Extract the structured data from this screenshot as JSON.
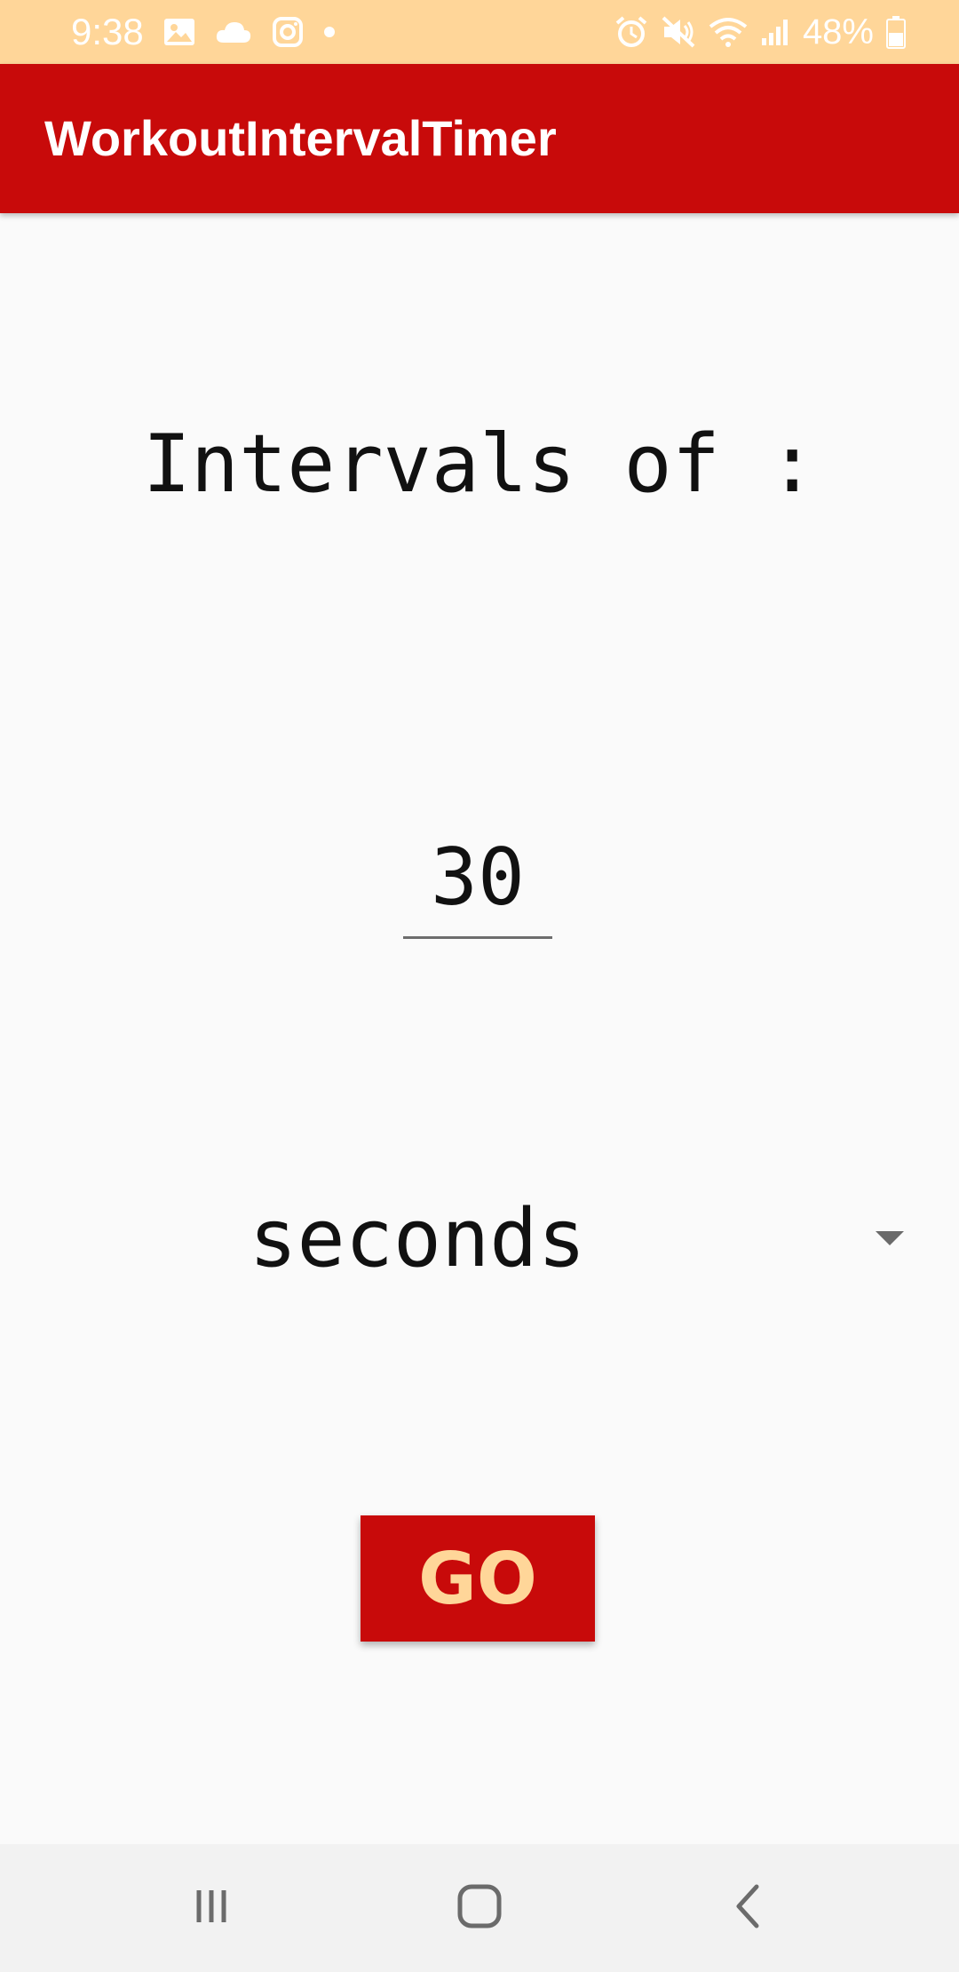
{
  "status_bar": {
    "time": "9:38",
    "battery_percent": "48%",
    "icons_left": [
      "gallery-icon",
      "cloud-icon",
      "instagram-icon",
      "dot-icon"
    ],
    "icons_right": [
      "alarm-icon",
      "mute-icon",
      "wifi-icon",
      "signal-icon",
      "battery-icon"
    ]
  },
  "app_bar": {
    "title": "WorkoutIntervalTimer"
  },
  "main": {
    "intervals_label": "Intervals of :",
    "interval_value": "30",
    "unit_selected": "seconds",
    "go_label": "GO"
  },
  "nav_bar": {
    "icons": [
      "recents-icon",
      "home-icon",
      "back-icon"
    ]
  },
  "colors": {
    "status_bar_bg": "#ffd699",
    "app_bar_bg": "#c80a0a",
    "button_bg": "#c80a0a",
    "button_text": "#ffd699",
    "background": "#fafafa"
  }
}
